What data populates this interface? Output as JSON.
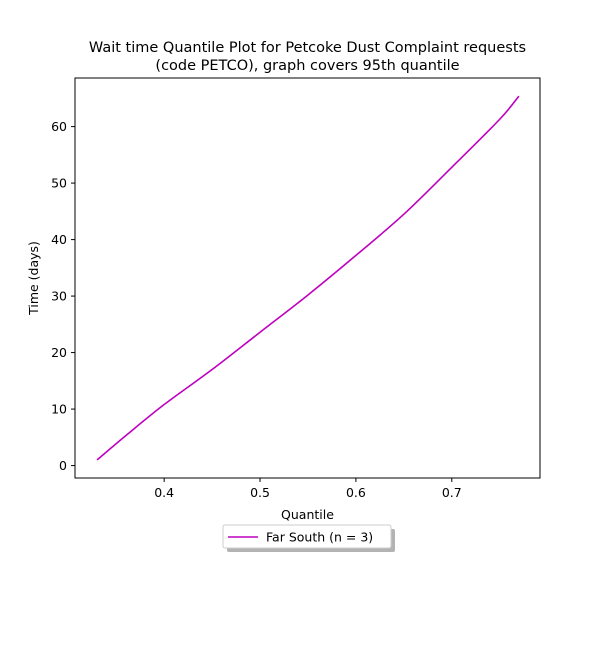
{
  "chart_data": {
    "type": "line",
    "title_lines": [
      "Wait time Quantile Plot for Petcoke Dust Complaint  requests",
      "(code PETCO), graph covers 95th quantile"
    ],
    "xlabel": "Quantile",
    "ylabel": "Time (days)",
    "xlim": [
      0.307,
      0.792
    ],
    "ylim": [
      -2.2,
      68.6
    ],
    "x_ticks": [
      0.4,
      0.5,
      0.6,
      0.7
    ],
    "x_tick_labels": [
      "0.4",
      "0.5",
      "0.6",
      "0.7"
    ],
    "y_ticks": [
      0,
      10,
      20,
      30,
      40,
      50,
      60
    ],
    "y_tick_labels": [
      "0",
      "10",
      "20",
      "30",
      "40",
      "50",
      "60"
    ],
    "grid": false,
    "legend_position": "below-center",
    "series": [
      {
        "name": "Far South (n = 3)",
        "color": "#bf00bf",
        "x": [
          0.33,
          0.36,
          0.4,
          0.45,
          0.5,
          0.55,
          0.6,
          0.65,
          0.7,
          0.75,
          0.77
        ],
        "y": [
          1.0,
          5.3,
          10.8,
          17.0,
          23.6,
          30.2,
          37.2,
          44.5,
          52.8,
          61.3,
          65.4
        ]
      }
    ]
  }
}
